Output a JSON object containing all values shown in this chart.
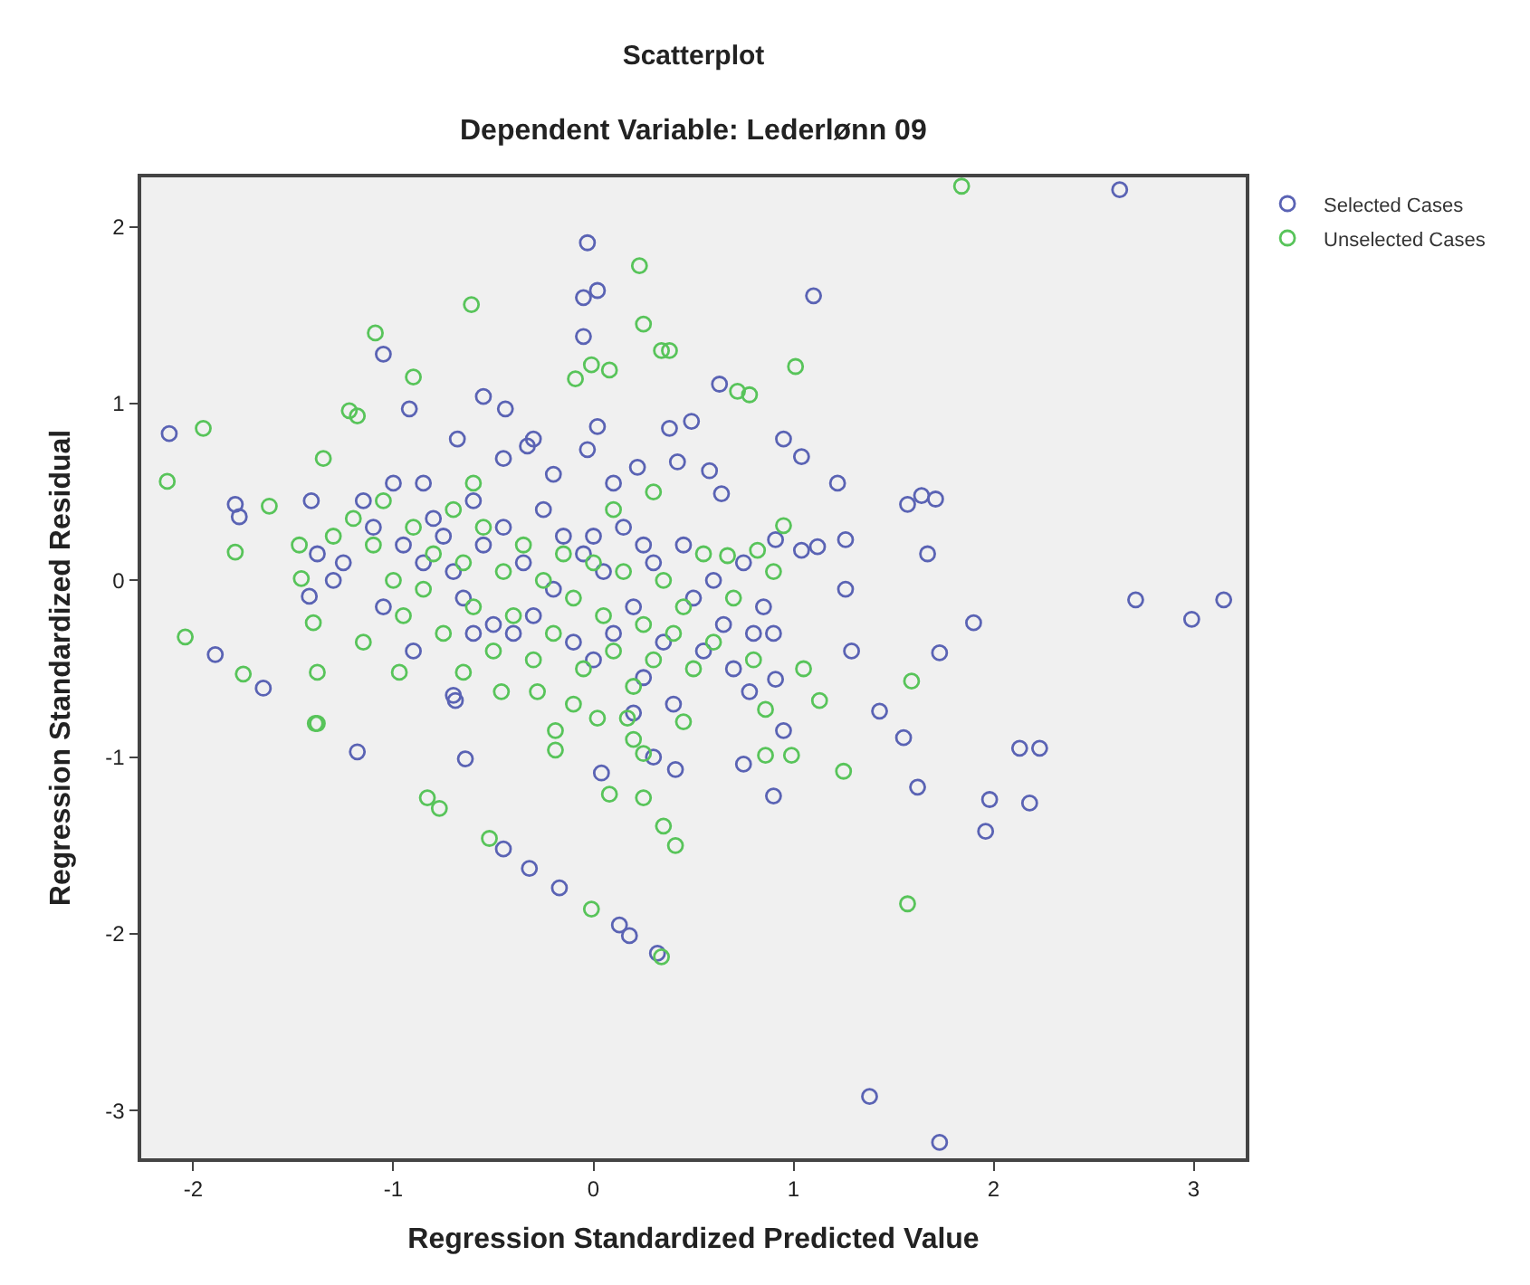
{
  "chart_data": {
    "type": "scatter",
    "title": "Scatterplot",
    "subtitle": "Dependent Variable: Lederlønn 09",
    "xlabel": "Regression Standardized Predicted Value",
    "ylabel": "Regression Standardized Residual",
    "xlim": [
      -2.26,
      3.26
    ],
    "ylim": [
      -3.27,
      2.28
    ],
    "xticks": [
      -2,
      -1,
      0,
      1,
      2,
      3
    ],
    "yticks": [
      -3,
      -2,
      -1,
      0,
      1,
      2
    ],
    "grid": false,
    "legend": "top right",
    "marker": "circle",
    "series": [
      {
        "name": "Selected Cases",
        "color": "#5a63b4",
        "x": [
          -2.12,
          -1.79,
          -1.77,
          -1.65,
          -1.89,
          -1.42,
          -1.38,
          -1.41,
          -1.18,
          -1.05,
          -0.92,
          -0.55,
          -0.44,
          -0.68,
          -0.33,
          -0.45,
          -0.03,
          -0.05,
          0.02,
          -0.05,
          0.02,
          -0.03,
          0.22,
          0.38,
          0.49,
          0.63,
          1.1,
          0.95,
          1.04,
          0.42,
          0.58,
          0.64,
          0.91,
          1.26,
          1.26,
          1.57,
          1.64,
          1.71,
          1.67,
          1.22,
          1.12,
          1.04,
          1.29,
          1.43,
          1.55,
          1.62,
          1.9,
          1.73,
          1.98,
          1.96,
          2.13,
          2.23,
          2.18,
          2.63,
          2.71,
          2.99,
          3.15,
          1.38,
          1.73,
          0.95,
          0.9,
          0.78,
          0.91,
          0.75,
          -0.64,
          -0.69,
          -0.45,
          -0.32,
          -0.17,
          0.13,
          0.18,
          0.32,
          0.04,
          0.41,
          -1.15,
          -1.1,
          -1.0,
          -0.95,
          -0.85,
          -0.8,
          -0.75,
          -0.7,
          -0.65,
          -0.6,
          -0.55,
          -0.5,
          -0.45,
          -0.4,
          -0.35,
          -0.3,
          -0.25,
          -0.2,
          -0.15,
          -0.1,
          -0.05,
          0.0,
          0.05,
          0.1,
          0.15,
          0.2,
          0.25,
          0.3,
          0.35,
          0.4,
          0.45,
          0.5,
          0.55,
          0.6,
          0.65,
          0.7,
          0.75,
          0.8,
          0.85,
          0.9,
          -1.25,
          -1.3,
          -1.05,
          -0.9,
          -0.7,
          -0.2,
          0.1,
          -0.3,
          0.3,
          0.2,
          0.0,
          0.25,
          -0.6,
          -0.85
        ],
        "values": [
          0.83,
          0.43,
          0.36,
          -0.61,
          -0.42,
          -0.09,
          0.15,
          0.45,
          -0.97,
          1.28,
          0.97,
          1.04,
          0.97,
          0.8,
          0.76,
          0.69,
          1.91,
          1.6,
          1.64,
          1.38,
          0.87,
          0.74,
          0.64,
          0.86,
          0.9,
          1.11,
          1.61,
          0.8,
          0.7,
          0.67,
          0.62,
          0.49,
          0.23,
          -0.05,
          0.23,
          0.43,
          0.48,
          0.46,
          0.15,
          0.55,
          0.19,
          0.17,
          -0.4,
          -0.74,
          -0.89,
          -1.17,
          -0.24,
          -0.41,
          -1.24,
          -1.42,
          -0.95,
          -0.95,
          -1.26,
          2.21,
          -0.11,
          -0.22,
          -0.11,
          -2.92,
          -3.18,
          -0.85,
          -1.22,
          -0.63,
          -0.56,
          -1.04,
          -1.01,
          -0.68,
          -1.52,
          -1.63,
          -1.74,
          -1.95,
          -2.01,
          -2.11,
          -1.09,
          -1.07,
          0.45,
          0.3,
          0.55,
          0.2,
          0.1,
          0.35,
          0.25,
          0.05,
          -0.1,
          0.45,
          0.2,
          -0.25,
          0.3,
          -0.3,
          0.1,
          -0.2,
          0.4,
          -0.05,
          0.25,
          -0.35,
          0.15,
          -0.45,
          0.05,
          -0.3,
          0.3,
          -0.15,
          -0.55,
          0.1,
          -0.35,
          -0.7,
          0.2,
          -0.1,
          -0.4,
          0.0,
          -0.25,
          -0.5,
          0.1,
          -0.3,
          -0.15,
          -0.3,
          0.1,
          0.0,
          -0.15,
          -0.4,
          -0.65,
          0.6,
          0.55,
          0.8,
          -1.0,
          -0.75,
          0.25,
          0.2,
          -0.3,
          0.55
        ]
      },
      {
        "name": "Unselected Cases",
        "color": "#58c45a",
        "x": [
          -2.13,
          -1.95,
          -2.04,
          -1.62,
          -1.79,
          -1.75,
          -1.47,
          -1.46,
          -1.4,
          -1.38,
          -1.35,
          -1.09,
          -0.9,
          -1.22,
          -1.18,
          -0.61,
          0.23,
          0.25,
          0.34,
          -0.01,
          0.08,
          -0.09,
          1.84,
          1.01,
          0.72,
          0.78,
          0.95,
          0.82,
          0.67,
          0.38,
          1.59,
          1.05,
          1.13,
          0.86,
          0.99,
          1.25,
          1.57,
          0.86,
          -1.38,
          -1.39,
          -0.97,
          -0.83,
          -0.77,
          -0.52,
          -0.01,
          0.34,
          -0.19,
          -0.19,
          0.08,
          0.25,
          0.35,
          0.41,
          0.02,
          0.17,
          0.25,
          -0.28,
          -0.46,
          -0.65,
          -1.2,
          -1.1,
          -1.05,
          -1.0,
          -0.95,
          -0.9,
          -0.85,
          -0.8,
          -0.75,
          -0.7,
          -0.65,
          -0.6,
          -0.55,
          -0.5,
          -0.45,
          -0.4,
          -0.35,
          -0.3,
          -0.25,
          -0.2,
          -0.15,
          -0.1,
          -0.05,
          0.0,
          0.05,
          0.1,
          0.15,
          0.2,
          0.25,
          0.3,
          0.35,
          0.4,
          0.45,
          0.5,
          0.55,
          0.6,
          0.7,
          0.8,
          0.9,
          -1.3,
          -1.15,
          -0.6,
          0.1,
          0.3,
          0.2,
          -0.1,
          0.45
        ],
        "values": [
          0.56,
          0.86,
          -0.32,
          0.42,
          0.16,
          -0.53,
          0.2,
          0.01,
          -0.24,
          -0.52,
          0.69,
          1.4,
          1.15,
          0.96,
          0.93,
          1.56,
          1.78,
          1.45,
          1.3,
          1.22,
          1.19,
          1.14,
          2.23,
          1.21,
          1.07,
          1.05,
          0.31,
          0.17,
          0.14,
          1.3,
          -0.57,
          -0.5,
          -0.68,
          -0.99,
          -0.99,
          -1.08,
          -1.83,
          -0.73,
          -0.81,
          -0.81,
          -0.52,
          -1.23,
          -1.29,
          -1.46,
          -1.86,
          -2.13,
          -0.85,
          -0.96,
          -1.21,
          -1.23,
          -1.39,
          -1.5,
          -0.78,
          -0.78,
          -0.98,
          -0.63,
          -0.63,
          -0.52,
          0.35,
          0.2,
          0.45,
          0.0,
          -0.2,
          0.3,
          -0.05,
          0.15,
          -0.3,
          0.4,
          0.1,
          -0.15,
          0.3,
          -0.4,
          0.05,
          -0.2,
          0.2,
          -0.45,
          0.0,
          -0.3,
          0.15,
          -0.1,
          -0.5,
          0.1,
          -0.2,
          -0.4,
          0.05,
          -0.6,
          -0.25,
          -0.45,
          0.0,
          -0.3,
          -0.15,
          -0.5,
          0.15,
          -0.35,
          -0.1,
          -0.45,
          0.05,
          0.25,
          -0.35,
          0.55,
          0.4,
          0.5,
          -0.9,
          -0.7,
          -0.8
        ]
      }
    ]
  }
}
